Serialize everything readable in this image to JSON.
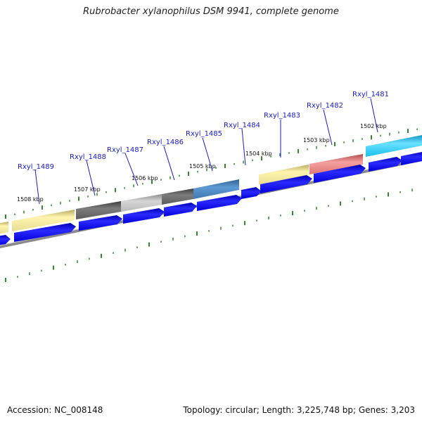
{
  "title": "Rubrobacter xylanophilus DSM 9941, complete genome",
  "footer": {
    "accession": "Accession: NC_008148",
    "summary": "Topology: circular; Length: 3,225,748 bp; Genes: 3,203"
  },
  "colors": {
    "gc_ticks": "#2e8b2e",
    "cds_arrow": "#0000e6",
    "backbone": "#888888",
    "gene_label": "#1a1acc",
    "feature_yellow": "#eee29a",
    "feature_gray_dark": "#6e6e6e",
    "feature_gray_light": "#bdbdbd",
    "feature_steelblue": "#4a86c0",
    "feature_red": "#e37f7f",
    "feature_cyan": "#1ec8f0"
  },
  "scale_ticks": [
    {
      "label": "1502 kbp"
    },
    {
      "label": "1503 kbp"
    },
    {
      "label": "1504 kbp"
    },
    {
      "label": "1505 kbp"
    },
    {
      "label": "1506 kbp"
    },
    {
      "label": "1507 kbp"
    },
    {
      "label": "1508 kbp"
    }
  ],
  "genes": [
    {
      "label": "Rxyl_1481",
      "color": "cyan"
    },
    {
      "label": "Rxyl_1482",
      "color": "red"
    },
    {
      "label": "Rxyl_1483",
      "color": "yellow"
    },
    {
      "label": "Rxyl_1484",
      "color": "none"
    },
    {
      "label": "Rxyl_1485",
      "color": "steelblue"
    },
    {
      "label": "Rxyl_1486",
      "color": "gray-dark"
    },
    {
      "label": "Rxyl_1487",
      "color": "gray-light"
    },
    {
      "label": "Rxyl_1488",
      "color": "gray-dark"
    },
    {
      "label": "Rxyl_1489",
      "color": "yellow"
    }
  ]
}
